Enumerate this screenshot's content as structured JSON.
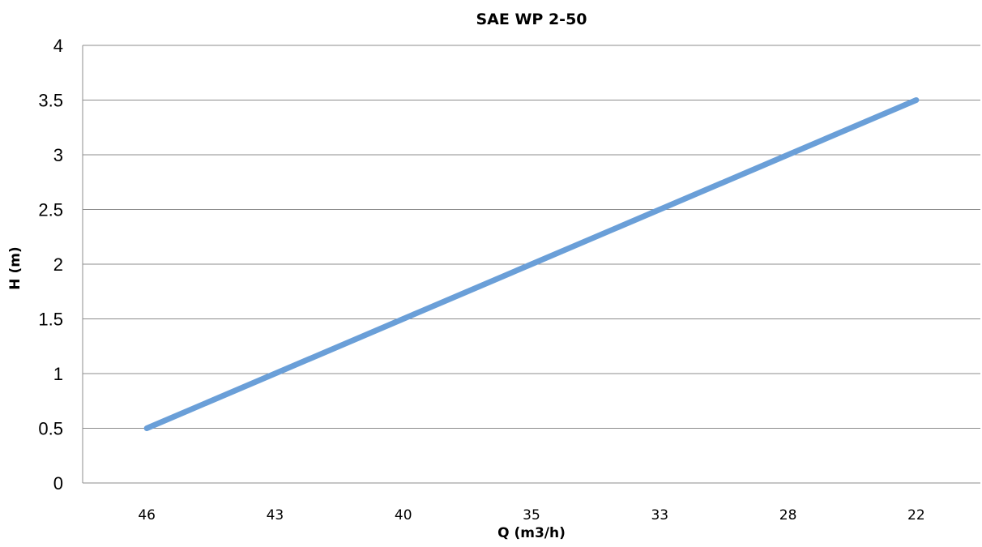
{
  "chart_data": {
    "type": "line",
    "title": "SAE WP 2-50",
    "xlabel": "Q (m3/h)",
    "ylabel": "H (m)",
    "categories": [
      "46",
      "43",
      "40",
      "35",
      "33",
      "28",
      "22"
    ],
    "series": [
      {
        "values": [
          0.5,
          1.0,
          1.5,
          2.0,
          2.5,
          3.0,
          3.5
        ]
      }
    ],
    "ylim": [
      0,
      4
    ],
    "yticks": [
      "0",
      "0.5",
      "1",
      "1.5",
      "2",
      "2.5",
      "3",
      "3.5",
      "4"
    ],
    "ytick_values": [
      0,
      0.5,
      1,
      1.5,
      2,
      2.5,
      3,
      3.5,
      4
    ],
    "grid": true,
    "legend": "none",
    "colors": {
      "series": "#6a9fd8",
      "grid": "#8c8c8c"
    }
  }
}
